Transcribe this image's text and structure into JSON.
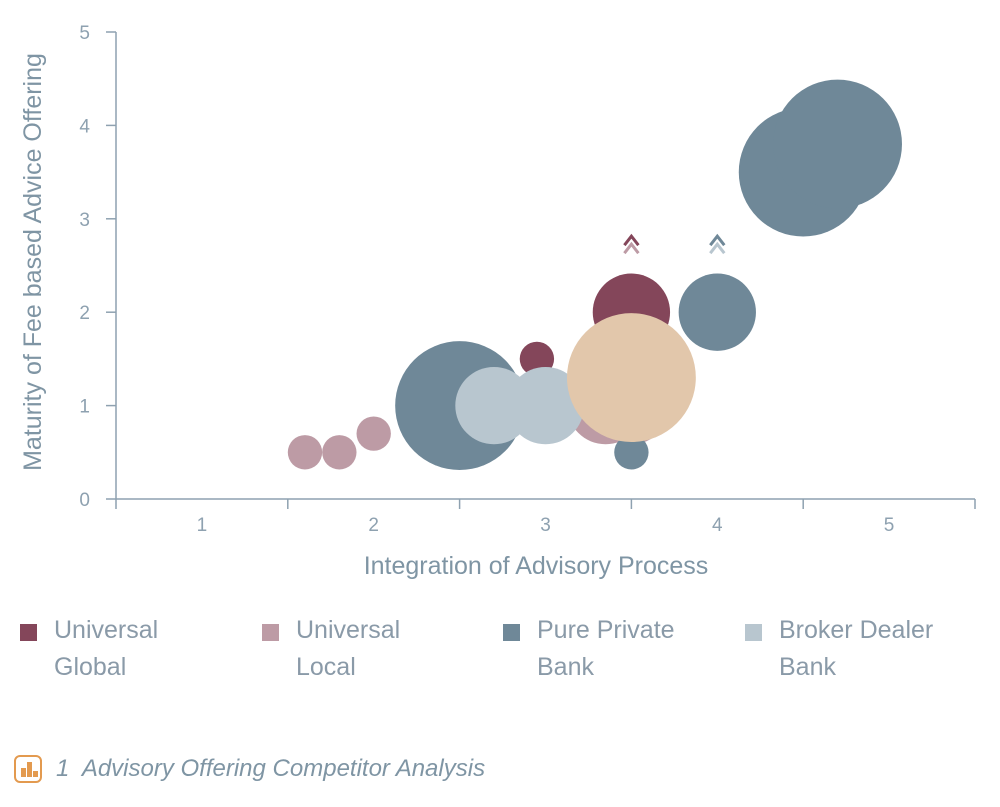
{
  "chart_data": {
    "type": "bubble",
    "xlabel": "Integration of Advisory Process",
    "ylabel": "Maturity of Fee based Advice Offering",
    "xlim": [
      0.5,
      5.5
    ],
    "ylim": [
      0,
      5
    ],
    "x_ticks": [
      "1",
      "2",
      "3",
      "4",
      "5"
    ],
    "y_ticks": [
      "0",
      "1",
      "2",
      "3",
      "4",
      "5"
    ],
    "legend_position": "bottom",
    "series": [
      {
        "name": "Universal Global",
        "color": "#84465a",
        "points": [
          {
            "x": 2.95,
            "y": 1.5,
            "size": 0.2
          },
          {
            "x": 3.5,
            "y": 2.0,
            "size": 0.45
          }
        ]
      },
      {
        "name": "Universal Local",
        "color": "#bd9ba5",
        "points": [
          {
            "x": 1.6,
            "y": 0.5,
            "size": 0.2
          },
          {
            "x": 1.8,
            "y": 0.5,
            "size": 0.2
          },
          {
            "x": 2.0,
            "y": 0.7,
            "size": 0.2
          },
          {
            "x": 3.35,
            "y": 1.0,
            "size": 0.45
          },
          {
            "x": 3.5,
            "y": 1.0,
            "size": 0.45
          }
        ]
      },
      {
        "name": "Pure Private Bank",
        "color": "#6f8898",
        "points": [
          {
            "x": 2.5,
            "y": 1.0,
            "size": 0.75
          },
          {
            "x": 3.5,
            "y": 0.5,
            "size": 0.2
          },
          {
            "x": 4.0,
            "y": 2.0,
            "size": 0.45
          },
          {
            "x": 4.5,
            "y": 3.5,
            "size": 0.75
          },
          {
            "x": 4.7,
            "y": 3.8,
            "size": 0.75
          }
        ]
      },
      {
        "name": "Broker Dealer Bank",
        "color": "#b8c6cf",
        "points": [
          {
            "x": 2.7,
            "y": 1.0,
            "size": 0.45
          },
          {
            "x": 3.0,
            "y": 1.0,
            "size": 0.45
          }
        ]
      },
      {
        "name": "",
        "color": "#e2c7ab",
        "points": [
          {
            "x": 3.5,
            "y": 1.3,
            "size": 0.75
          }
        ]
      }
    ],
    "annotations": [
      {
        "type": "double-chevron-up",
        "x": 3.5,
        "y": 2.75,
        "colors": [
          "#84465a",
          "#bd9ba5"
        ]
      },
      {
        "type": "double-chevron-up",
        "x": 4.0,
        "y": 2.75,
        "colors": [
          "#6f8898",
          "#b8c6cf"
        ]
      }
    ]
  },
  "legend": {
    "items": [
      {
        "lines": [
          "Universal",
          "Global"
        ],
        "color": "#84465a"
      },
      {
        "lines": [
          "Universal",
          "Local"
        ],
        "color": "#bd9ba5"
      },
      {
        "lines": [
          "Pure Private",
          "Bank"
        ],
        "color": "#6f8898"
      },
      {
        "lines": [
          "Broker Dealer",
          "Bank"
        ],
        "color": "#b8c6cf"
      }
    ]
  },
  "caption": {
    "number": "1",
    "text": "Advisory Offering Competitor Analysis",
    "icon": "bar-chart-icon",
    "icon_color": "#e39a4f"
  },
  "colors": {
    "axis": "#8ea1b0",
    "text": "#7f95a4"
  }
}
